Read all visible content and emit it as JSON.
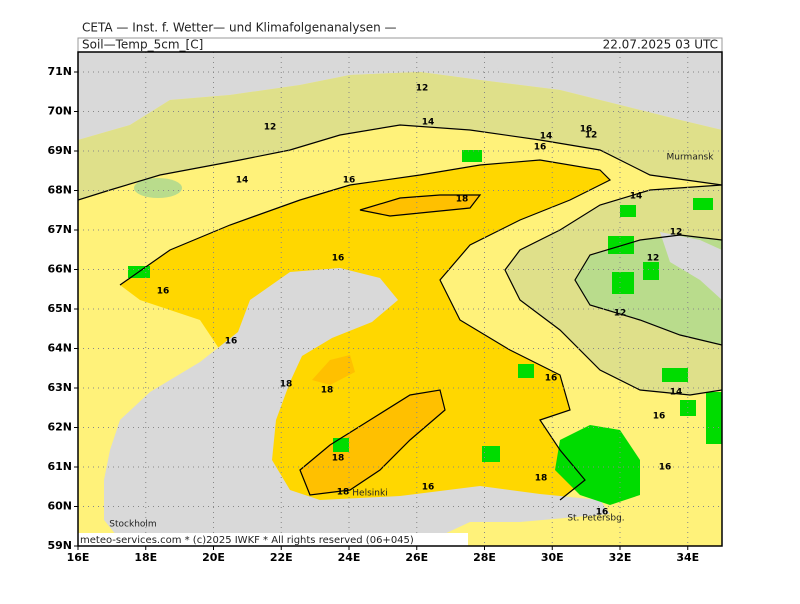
{
  "header": {
    "title": "CETA — Inst. f. Wetter— und Klimafolgenanalysen —",
    "parameter": "Soil—Temp_5cm_[C]",
    "valid_time": "22.07.2025 03 UTC"
  },
  "axes": {
    "latitudes": [
      "71N",
      "70N",
      "69N",
      "68N",
      "67N",
      "66N",
      "65N",
      "64N",
      "63N",
      "62N",
      "61N",
      "60N",
      "59N"
    ],
    "longitudes": [
      "16E",
      "18E",
      "20E",
      "22E",
      "24E",
      "26E",
      "28E",
      "30E",
      "32E",
      "34E"
    ]
  },
  "places": [
    "Murmansk",
    "Helsinki",
    "St. Petersbg.",
    "Stockholm"
  ],
  "contour_labels": [
    "12",
    "12",
    "14",
    "14",
    "16",
    "16",
    "12",
    "14",
    "16",
    "18",
    "14",
    "12",
    "12",
    "16",
    "16",
    "12",
    "16",
    "16",
    "18",
    "18",
    "14",
    "16",
    "18",
    "16",
    "18",
    "18",
    "16",
    "16"
  ],
  "footer": "meteo-services.com * (c)2025 IWKF * All rights reserved (06+045)"
}
